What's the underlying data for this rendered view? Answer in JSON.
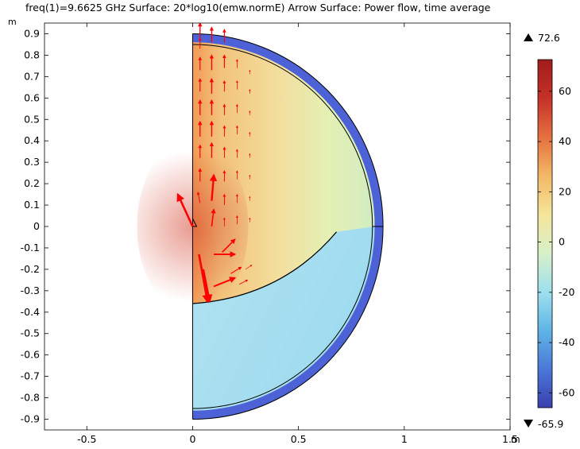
{
  "title": "freq(1)=9.6625 GHz  Surface: 20*log10(emw.normE)  Arrow Surface: Power flow, time average",
  "colors": {
    "boundary": "#000000",
    "arrow": "#ff0000",
    "outer_layer": "#4d62d6",
    "upper_field": "#f4cf82",
    "lower_field": "#a8e2ef"
  },
  "chart_data": {
    "type": "heatmap",
    "title": "freq(1)=9.6625 GHz  Surface: 20*log10(emw.normE)  Arrow Surface: Power flow, time average",
    "x_unit": "m",
    "y_unit": "m",
    "xlim": [
      -0.7,
      1.5
    ],
    "ylim": [
      -0.95,
      0.95
    ],
    "x_ticks": [
      {
        "value": -0.5,
        "label": "-0.5"
      },
      {
        "value": 0,
        "label": "0"
      },
      {
        "value": 0.5,
        "label": "0.5"
      },
      {
        "value": 1,
        "label": "1"
      },
      {
        "value": 1.5,
        "label": "1.5"
      }
    ],
    "y_ticks": [
      {
        "value": 0.9,
        "label": "0.9"
      },
      {
        "value": 0.8,
        "label": "0.8"
      },
      {
        "value": 0.7,
        "label": "0.7"
      },
      {
        "value": 0.6,
        "label": "0.6"
      },
      {
        "value": 0.5,
        "label": "0.5"
      },
      {
        "value": 0.4,
        "label": "0.4"
      },
      {
        "value": 0.3,
        "label": "0.3"
      },
      {
        "value": 0.2,
        "label": "0.2"
      },
      {
        "value": 0.1,
        "label": "0.1"
      },
      {
        "value": 0,
        "label": "0"
      },
      {
        "value": -0.1,
        "label": "-0.1"
      },
      {
        "value": -0.2,
        "label": "-0.2"
      },
      {
        "value": -0.3,
        "label": "-0.3"
      },
      {
        "value": -0.4,
        "label": "-0.4"
      },
      {
        "value": -0.5,
        "label": "-0.5"
      },
      {
        "value": -0.6,
        "label": "-0.6"
      },
      {
        "value": -0.7,
        "label": "-0.7"
      },
      {
        "value": -0.8,
        "label": "-0.8"
      },
      {
        "value": -0.9,
        "label": "-0.9"
      }
    ],
    "geometry": {
      "outer_radius": 0.9,
      "inner_radius": 0.85,
      "lens_arc_end": [
        0.68,
        -0.025
      ],
      "lens_arc_start": [
        0,
        -0.36
      ]
    },
    "colorbar": {
      "min": -65.9,
      "max": 72.6,
      "max_label": "72.6",
      "min_label": "-65.9",
      "ticks": [
        {
          "value": 60,
          "label": "60"
        },
        {
          "value": 40,
          "label": "40"
        },
        {
          "value": 20,
          "label": "20"
        },
        {
          "value": 0,
          "label": "0"
        },
        {
          "value": -20,
          "label": "-20"
        },
        {
          "value": -40,
          "label": "-40"
        },
        {
          "value": -60,
          "label": "-60"
        }
      ],
      "stops": [
        "#3a3fae",
        "#4b78d8",
        "#5fb5e6",
        "#9ee0ee",
        "#d8f0c8",
        "#f5e59a",
        "#f2b866",
        "#e5703f",
        "#c63127",
        "#a01c1c"
      ]
    },
    "arrows": [
      {
        "x": 0.035,
        "y": 0.88,
        "dx": 0,
        "dy": 0.07
      },
      {
        "x": 0.035,
        "y": 0.83,
        "dx": 0,
        "dy": 0.05
      },
      {
        "x": 0.035,
        "y": 0.73,
        "dx": 0,
        "dy": 0.06
      },
      {
        "x": 0.035,
        "y": 0.63,
        "dx": 0,
        "dy": 0.06
      },
      {
        "x": 0.035,
        "y": 0.52,
        "dx": 0,
        "dy": 0.07
      },
      {
        "x": 0.035,
        "y": 0.42,
        "dx": 0,
        "dy": 0.07
      },
      {
        "x": 0.035,
        "y": 0.32,
        "dx": 0,
        "dy": 0.06
      },
      {
        "x": 0.035,
        "y": 0.21,
        "dx": 0,
        "dy": 0.06
      },
      {
        "x": 0.035,
        "y": 0.11,
        "dx": -0.01,
        "dy": 0.05
      },
      {
        "x": 0.09,
        "y": 0.86,
        "dx": 0,
        "dy": 0.07
      },
      {
        "x": 0.09,
        "y": 0.73,
        "dx": 0,
        "dy": 0.07
      },
      {
        "x": 0.09,
        "y": 0.62,
        "dx": 0,
        "dy": 0.07
      },
      {
        "x": 0.09,
        "y": 0.52,
        "dx": 0,
        "dy": 0.07
      },
      {
        "x": 0.09,
        "y": 0.42,
        "dx": 0,
        "dy": 0.07
      },
      {
        "x": 0.09,
        "y": 0.32,
        "dx": 0,
        "dy": 0.07
      },
      {
        "x": 0.09,
        "y": 0.12,
        "dx": 0.01,
        "dy": 0.12
      },
      {
        "x": 0.09,
        "y": 0.0,
        "dx": 0.01,
        "dy": 0.08
      },
      {
        "x": 0.15,
        "y": 0.86,
        "dx": 0,
        "dy": 0.06
      },
      {
        "x": 0.15,
        "y": 0.74,
        "dx": 0,
        "dy": 0.06
      },
      {
        "x": 0.15,
        "y": 0.63,
        "dx": 0,
        "dy": 0.05
      },
      {
        "x": 0.15,
        "y": 0.52,
        "dx": 0,
        "dy": 0.05
      },
      {
        "x": 0.15,
        "y": 0.42,
        "dx": 0,
        "dy": 0.05
      },
      {
        "x": 0.15,
        "y": 0.32,
        "dx": 0,
        "dy": 0.05
      },
      {
        "x": 0.15,
        "y": 0.21,
        "dx": 0,
        "dy": 0.05
      },
      {
        "x": 0.15,
        "y": 0.1,
        "dx": 0,
        "dy": 0.05
      },
      {
        "x": 0.15,
        "y": 0.0,
        "dx": 0,
        "dy": 0.04
      },
      {
        "x": 0.21,
        "y": 0.74,
        "dx": 0,
        "dy": 0.04
      },
      {
        "x": 0.21,
        "y": 0.64,
        "dx": 0,
        "dy": 0.04
      },
      {
        "x": 0.21,
        "y": 0.53,
        "dx": 0,
        "dy": 0.04
      },
      {
        "x": 0.21,
        "y": 0.43,
        "dx": 0,
        "dy": 0.04
      },
      {
        "x": 0.21,
        "y": 0.32,
        "dx": 0,
        "dy": 0.04
      },
      {
        "x": 0.21,
        "y": 0.22,
        "dx": 0,
        "dy": 0.04
      },
      {
        "x": 0.21,
        "y": 0.11,
        "dx": 0,
        "dy": 0.04
      },
      {
        "x": 0.21,
        "y": 0.01,
        "dx": 0,
        "dy": 0.04
      },
      {
        "x": 0.27,
        "y": 0.71,
        "dx": 0,
        "dy": 0.02
      },
      {
        "x": 0.27,
        "y": 0.62,
        "dx": 0,
        "dy": 0.02
      },
      {
        "x": 0.27,
        "y": 0.52,
        "dx": 0,
        "dy": 0.02
      },
      {
        "x": 0.27,
        "y": 0.42,
        "dx": 0,
        "dy": 0.02
      },
      {
        "x": 0.27,
        "y": 0.32,
        "dx": 0,
        "dy": 0.02
      },
      {
        "x": 0.27,
        "y": 0.22,
        "dx": 0,
        "dy": 0.02
      },
      {
        "x": 0.27,
        "y": 0.12,
        "dx": 0,
        "dy": 0.02
      },
      {
        "x": 0.27,
        "y": 0.02,
        "dx": 0,
        "dy": 0.02
      },
      {
        "x": 0.0,
        "y": 0.0,
        "dx": -0.07,
        "dy": 0.15
      },
      {
        "x": 0.03,
        "y": -0.13,
        "dx": 0.04,
        "dy": -0.22
      },
      {
        "x": 0.05,
        "y": -0.2,
        "dx": 0.03,
        "dy": -0.15
      },
      {
        "x": 0.1,
        "y": -0.13,
        "dx": 0.1,
        "dy": 0.0
      },
      {
        "x": 0.14,
        "y": -0.12,
        "dx": 0.06,
        "dy": 0.06
      },
      {
        "x": 0.1,
        "y": -0.28,
        "dx": 0.1,
        "dy": 0.04
      },
      {
        "x": 0.18,
        "y": -0.22,
        "dx": 0.05,
        "dy": 0.03
      },
      {
        "x": 0.22,
        "y": -0.27,
        "dx": 0.04,
        "dy": 0.02
      },
      {
        "x": 0.25,
        "y": -0.2,
        "dx": 0.03,
        "dy": 0.02
      }
    ]
  }
}
